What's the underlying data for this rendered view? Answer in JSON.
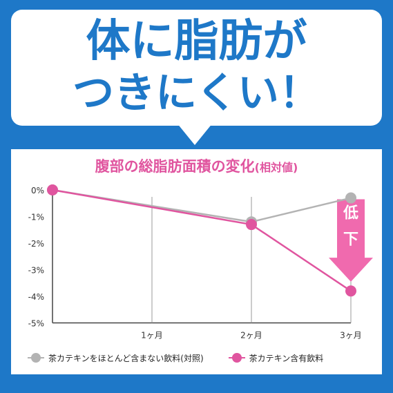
{
  "headline": {
    "line1": "体に脂肪が",
    "line2": "つきにくい！"
  },
  "chart_data": {
    "type": "line",
    "title": "腹部の総脂肪面積の変化",
    "title_suffix": "(相対値)",
    "categories": [
      "",
      "1ヶ月",
      "2ヶ月",
      "3ヶ月"
    ],
    "x": [
      0,
      1,
      2,
      3
    ],
    "y_ticks": [
      "0%",
      "-1%",
      "-2%",
      "-3%",
      "-4%",
      "-5%"
    ],
    "ylim": [
      -5,
      0
    ],
    "series": [
      {
        "name": "茶カテキンをほとんど含まない飲料(対照)",
        "color": "#b3b3b3",
        "x": [
          0,
          2,
          3
        ],
        "values": [
          0,
          -1.2,
          -0.3
        ]
      },
      {
        "name": "茶カテキン含有飲料",
        "color": "#e0559f",
        "x": [
          0,
          2,
          3
        ],
        "values": [
          0,
          -1.3,
          -3.8
        ]
      }
    ],
    "annotation": {
      "text": [
        "低",
        "下"
      ],
      "color": "#f06aae"
    },
    "grid": "vertical",
    "legend_position": "bottom"
  }
}
